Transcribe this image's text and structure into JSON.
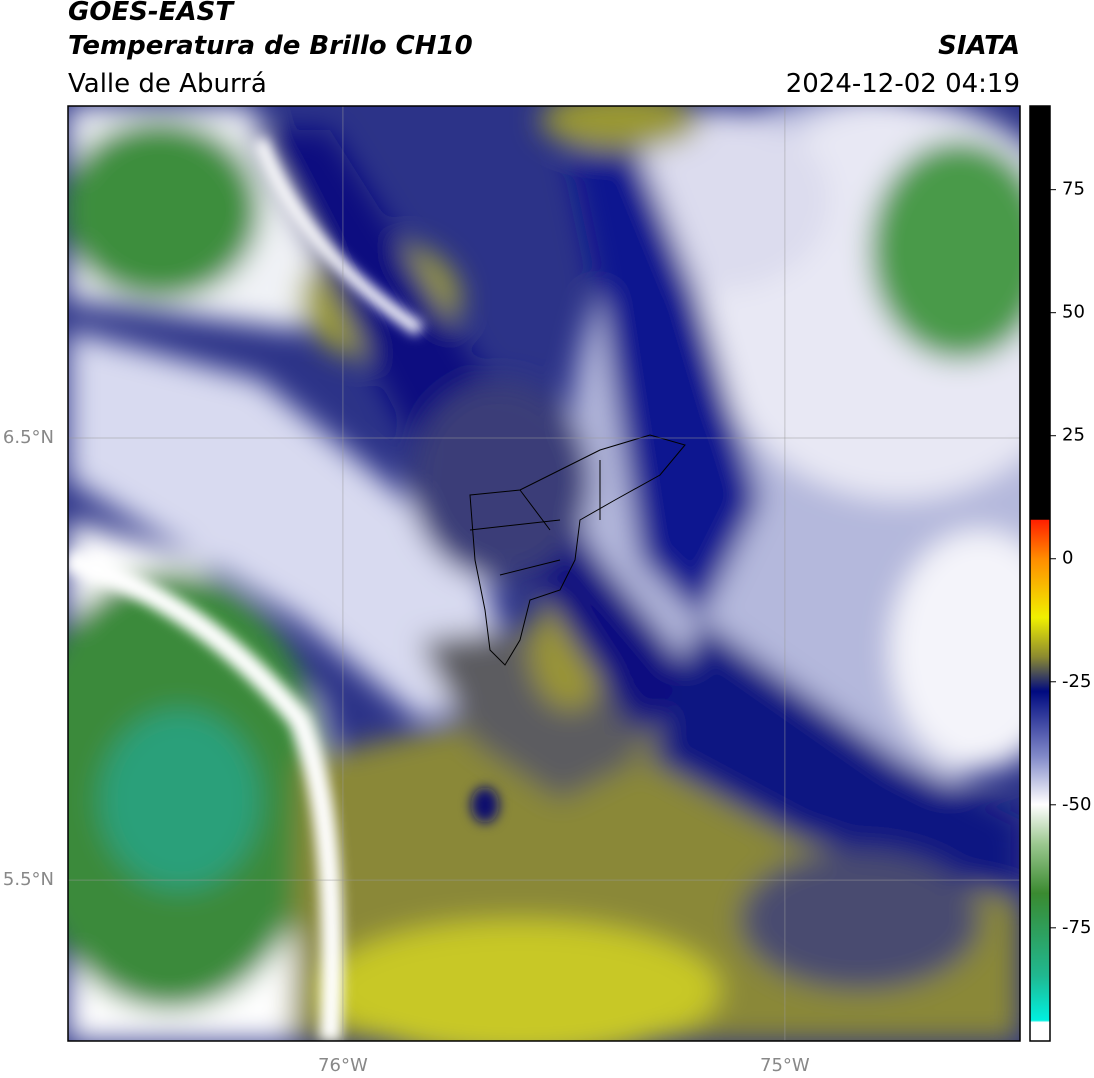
{
  "header": {
    "title": "GOES-EAST",
    "subtitle": "Temperatura de Brillo CH10",
    "region": "Valle de Aburrá",
    "source": "SIATA",
    "timestamp": "2024-12-02 04:19"
  },
  "map": {
    "lon_range": [
      -76.622,
      -74.468
    ],
    "lat_range": [
      5.136,
      7.251
    ],
    "lon_ticks": [
      {
        "value": -76,
        "label": "76°W"
      },
      {
        "value": -75,
        "label": "75°W"
      }
    ],
    "lat_ticks": [
      {
        "value": 6.5,
        "label": "6.5°N"
      },
      {
        "value": 5.5,
        "label": "5.5°N"
      }
    ],
    "grid": true
  },
  "colorbar": {
    "range": [
      -98,
      92
    ],
    "ticks": [
      -75,
      -50,
      -25,
      0,
      25,
      50,
      75
    ]
  }
}
